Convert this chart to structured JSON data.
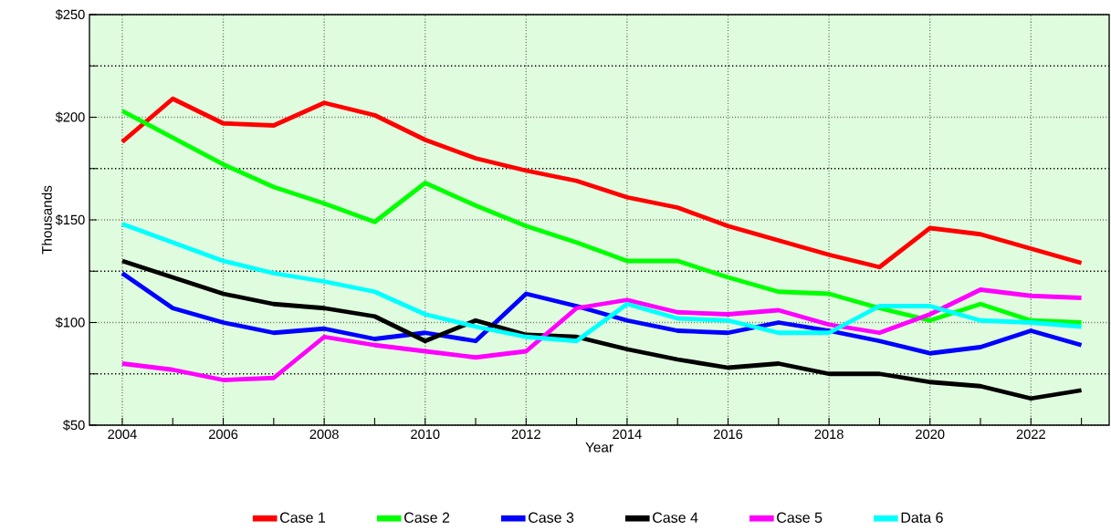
{
  "chart_data": {
    "type": "line",
    "xlabel": "Year",
    "ylabel": "Thousands",
    "x": [
      2004,
      2005,
      2006,
      2007,
      2008,
      2009,
      2010,
      2011,
      2012,
      2013,
      2014,
      2015,
      2016,
      2017,
      2018,
      2019,
      2020,
      2021,
      2022,
      2023
    ],
    "series": [
      {
        "name": "Case 1",
        "color": "#ff0000",
        "values": [
          188,
          209,
          197,
          196,
          207,
          201,
          189,
          180,
          174,
          169,
          161,
          156,
          147,
          140,
          133,
          127,
          146,
          143,
          136,
          129
        ]
      },
      {
        "name": "Case 2",
        "color": "#00ff00",
        "values": [
          203,
          190,
          177,
          166,
          158,
          149,
          168,
          157,
          147,
          139,
          130,
          130,
          122,
          115,
          114,
          107,
          101,
          109,
          101,
          100
        ]
      },
      {
        "name": "Case 3",
        "color": "#0000ff",
        "values": [
          124,
          107,
          100,
          95,
          97,
          92,
          95,
          91,
          114,
          108,
          101,
          96,
          95,
          100,
          96,
          91,
          85,
          88,
          96,
          89
        ]
      },
      {
        "name": "Case 4",
        "color": "#000000",
        "values": [
          130,
          122,
          114,
          109,
          107,
          103,
          91,
          101,
          94,
          93,
          87,
          82,
          78,
          80,
          75,
          75,
          71,
          69,
          63,
          67
        ]
      },
      {
        "name": "Case 5",
        "color": "#ff00ff",
        "values": [
          80,
          77,
          72,
          73,
          93,
          89,
          86,
          83,
          86,
          107,
          111,
          105,
          104,
          106,
          99,
          95,
          104,
          116,
          113,
          112
        ]
      },
      {
        "name": "Data 6",
        "color": "#00ffff",
        "values": [
          148,
          139,
          130,
          124,
          120,
          115,
          104,
          98,
          93,
          91,
          109,
          102,
          101,
          95,
          95,
          108,
          108,
          101,
          100,
          98
        ]
      }
    ],
    "xlim": [
      2003.35,
      2023.55
    ],
    "ylim": [
      50,
      250
    ],
    "xticks": [
      2004,
      {
        "value": 2005,
        "label": null
      },
      2006,
      {
        "value": 2007,
        "label": null
      },
      2008,
      {
        "value": 2009,
        "label": null
      },
      2010,
      {
        "value": 2011,
        "label": null
      },
      2012,
      {
        "value": 2013,
        "label": null
      },
      2014,
      {
        "value": 2015,
        "label": null
      },
      2016,
      {
        "value": 2017,
        "label": null
      },
      2018,
      {
        "value": 2019,
        "label": null
      },
      2020,
      {
        "value": 2021,
        "label": null
      },
      2022,
      {
        "value": 2023,
        "label": null
      }
    ],
    "yticks": [
      {
        "value": 50,
        "label": "$50"
      },
      {
        "value": 75,
        "label": null
      },
      {
        "value": 100,
        "label": "$100"
      },
      {
        "value": 125,
        "label": null
      },
      {
        "value": 150,
        "label": "$150"
      },
      {
        "value": 175,
        "label": null
      },
      {
        "value": 200,
        "label": "$200"
      },
      {
        "value": 225,
        "label": null
      },
      {
        "value": 250,
        "label": "$250"
      }
    ],
    "grid": true,
    "legend": "bottom",
    "marker": "none",
    "line_style": "solid"
  }
}
